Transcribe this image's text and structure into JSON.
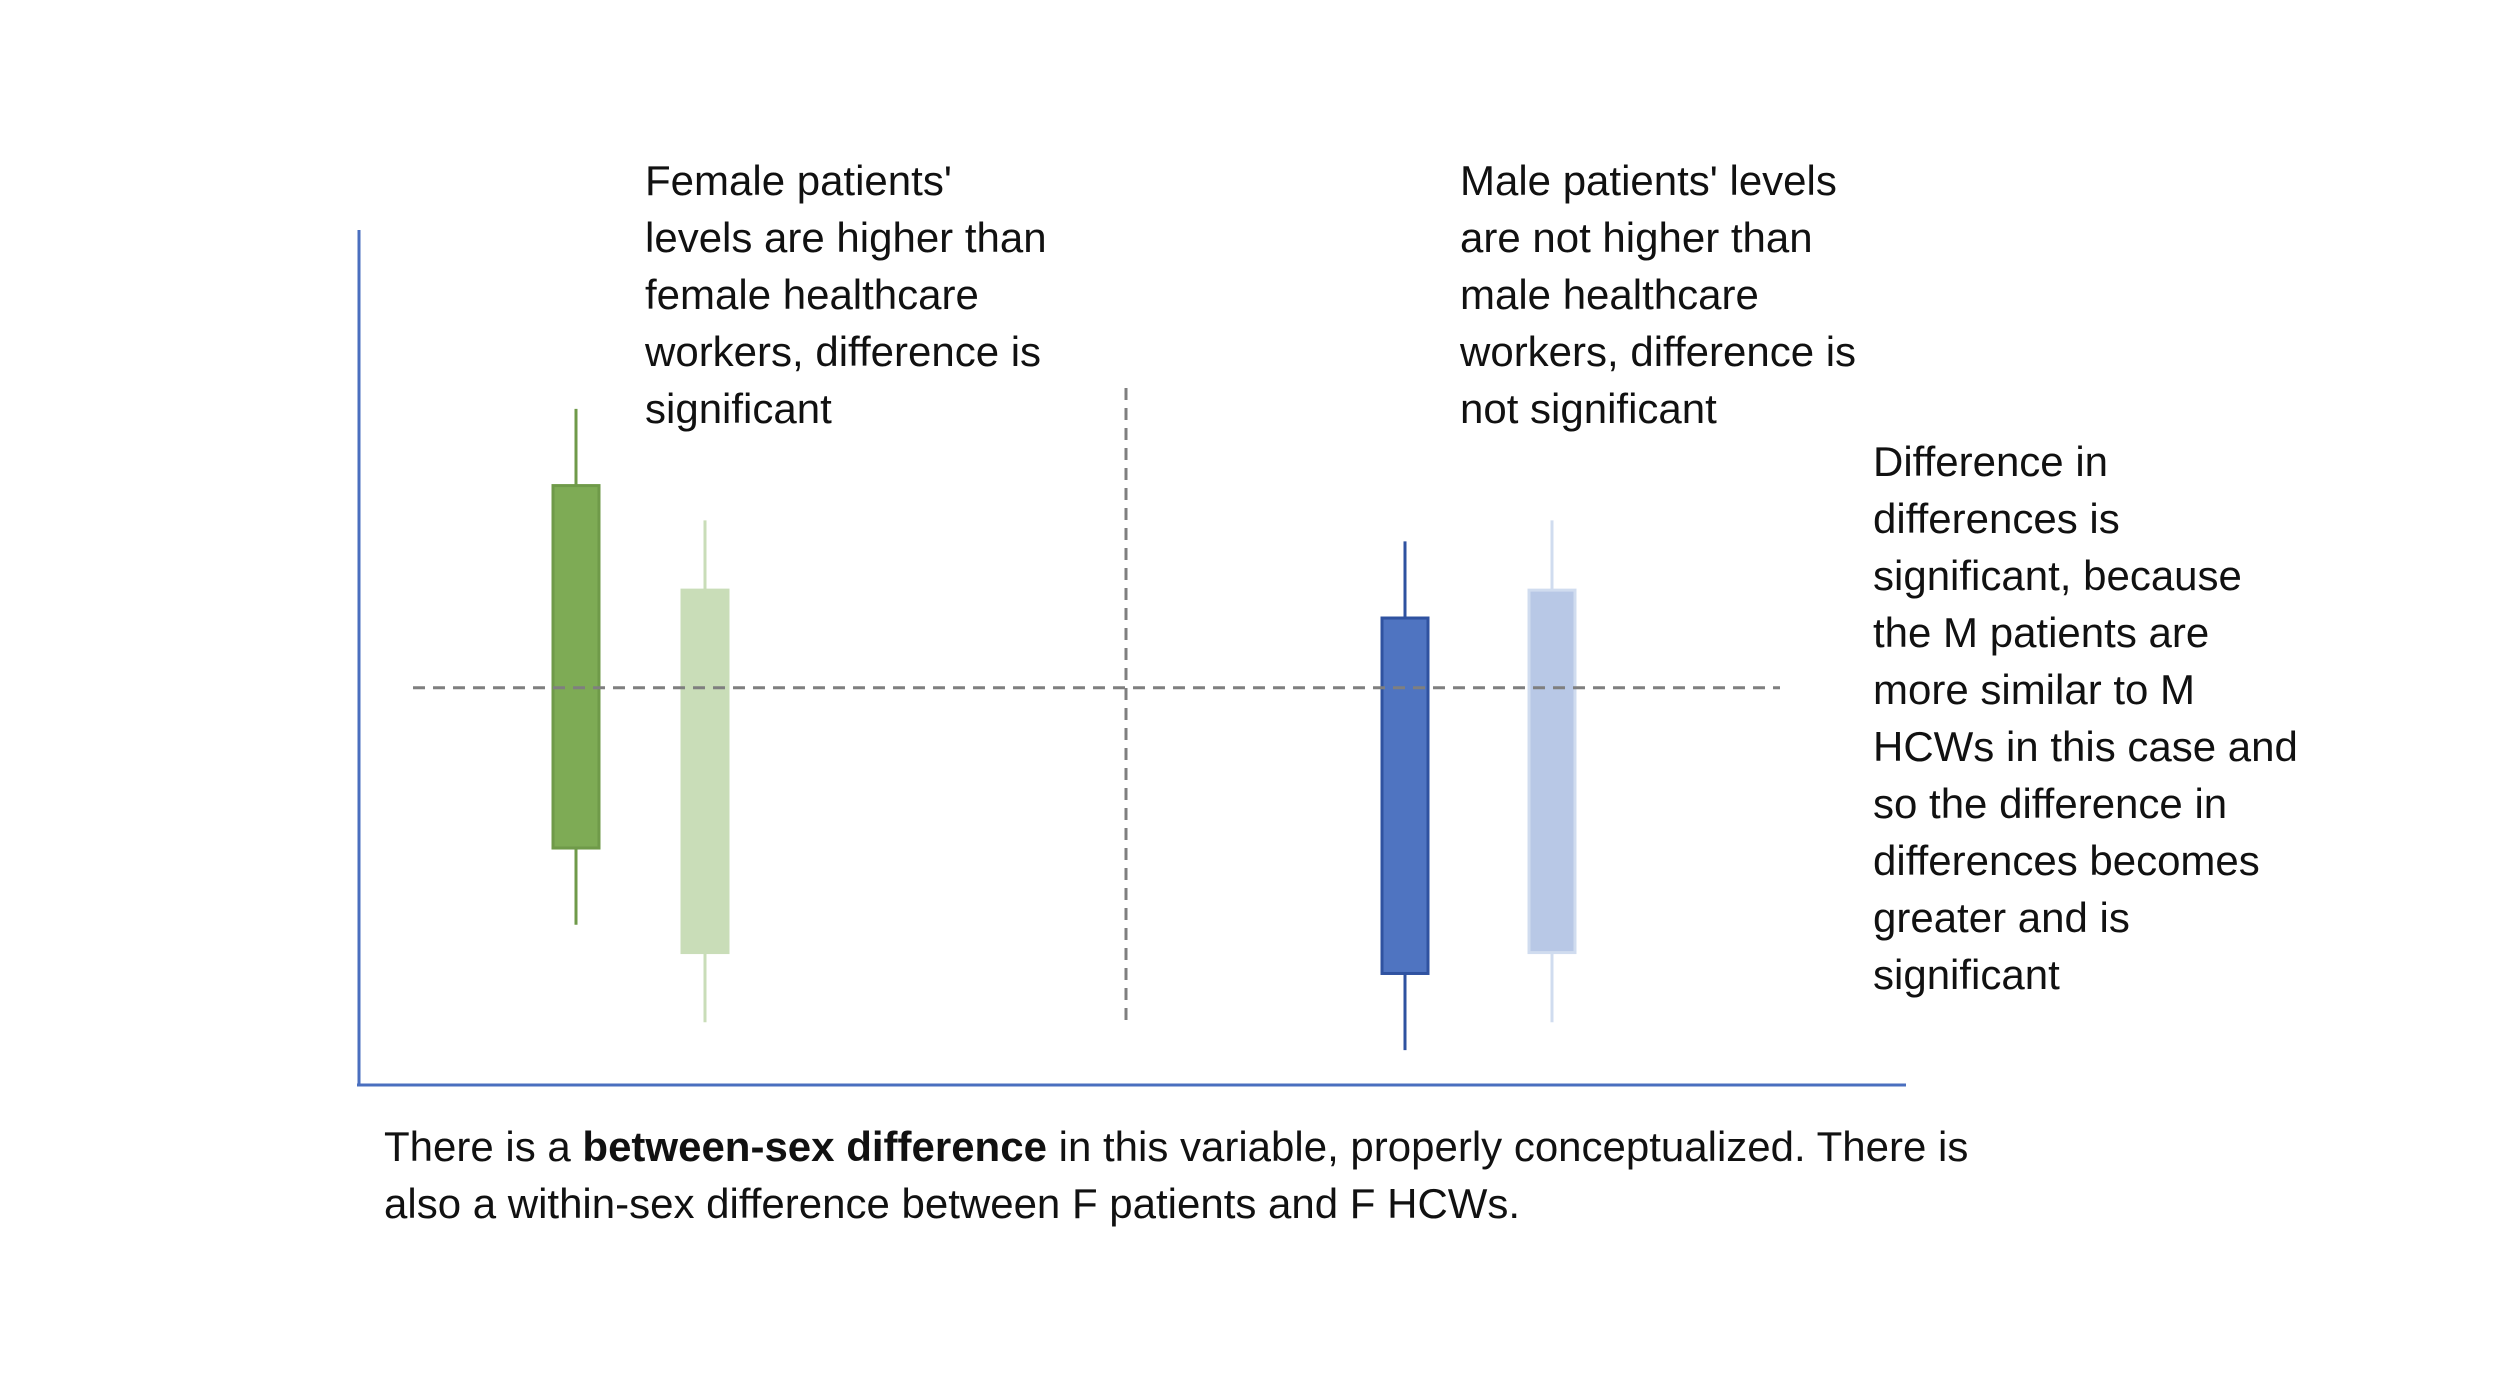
{
  "diagram": {
    "annotations": {
      "female": [
        "Female patients'",
        "levels are higher than",
        "female healthcare",
        "workers, difference is",
        "significant"
      ],
      "male": [
        "Male patients' levels",
        "are not higher than",
        "male healthcare",
        "workers, difference is",
        "not significant"
      ],
      "difference": [
        "Difference in",
        "differences is",
        "significant, because",
        "the M patients are",
        "more similar to M",
        "HCWs in this case and",
        "so the difference in",
        "differences becomes",
        "greater and is",
        "significant"
      ]
    },
    "caption": {
      "line1_prefix": "There is a ",
      "line1_bold": "between-sex difference",
      "line1_suffix": " in this variable, properly conceptualized. There is",
      "line2": "also a within-sex difference between F patients and F HCWs."
    },
    "boxes": [
      {
        "group": "female",
        "role": "patients",
        "low": 0.23,
        "q1": 0.34,
        "q3": 0.86,
        "high": 0.97,
        "color": "#7eab55",
        "border": "#6f9a49"
      },
      {
        "group": "female",
        "role": "healthcare workers",
        "low": 0.09,
        "q1": 0.19,
        "q3": 0.71,
        "high": 0.81,
        "color": "#c9ddb8",
        "border": "#c9ddb8"
      },
      {
        "group": "male",
        "role": "patients",
        "low": 0.05,
        "q1": 0.16,
        "q3": 0.67,
        "high": 0.78,
        "color": "#4f74c1",
        "border": "#2f52a0"
      },
      {
        "group": "male",
        "role": "healthcare workers",
        "low": 0.09,
        "q1": 0.19,
        "q3": 0.71,
        "high": 0.81,
        "color": "#b8c8e6",
        "border": "#d0dcef"
      }
    ],
    "reference_level": 0.57,
    "colors": {
      "axis": "#4a6fbf",
      "dashed": "#7f7f7f",
      "text": "#111111"
    }
  }
}
